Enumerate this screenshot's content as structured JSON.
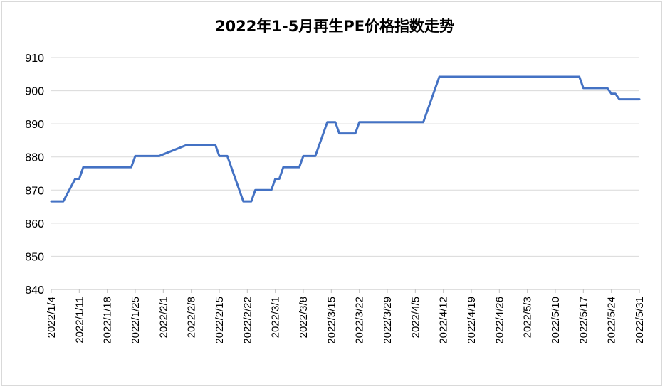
{
  "chart_data": {
    "type": "line",
    "title": "2022年1-5月再生PE价格指数走势",
    "xlabel": "",
    "ylabel": "",
    "ylim": [
      840,
      910
    ],
    "y_ticks": [
      840,
      850,
      860,
      870,
      880,
      890,
      900,
      910
    ],
    "grid": true,
    "legend": "none",
    "x_range": [
      "2022-01-04",
      "2022-05-31"
    ],
    "x_tick_labels": [
      "2022/1/4",
      "2022/1/11",
      "2022/1/18",
      "2022/1/25",
      "2022/2/1",
      "2022/2/8",
      "2022/2/15",
      "2022/2/22",
      "2022/3/1",
      "2022/3/8",
      "2022/3/15",
      "2022/3/22",
      "2022/3/29",
      "2022/4/5",
      "2022/4/12",
      "2022/4/19",
      "2022/4/26",
      "2022/5/3",
      "2022/5/10",
      "2022/5/17",
      "2022/5/24",
      "2022/5/31"
    ],
    "series": [
      {
        "color": "#4472C4",
        "points": [
          [
            "2022-01-04",
            866.6
          ],
          [
            "2022-01-07",
            866.6
          ],
          [
            "2022-01-10",
            873.4
          ],
          [
            "2022-01-11",
            873.4
          ],
          [
            "2022-01-12",
            876.9
          ],
          [
            "2022-01-24",
            876.9
          ],
          [
            "2022-01-25",
            880.3
          ],
          [
            "2022-01-31",
            880.3
          ],
          [
            "2022-02-07",
            883.7
          ],
          [
            "2022-02-14",
            883.7
          ],
          [
            "2022-02-15",
            880.3
          ],
          [
            "2022-02-17",
            880.3
          ],
          [
            "2022-02-21",
            866.6
          ],
          [
            "2022-02-23",
            866.6
          ],
          [
            "2022-02-24",
            870.0
          ],
          [
            "2022-02-28",
            870.0
          ],
          [
            "2022-03-01",
            873.4
          ],
          [
            "2022-03-02",
            873.4
          ],
          [
            "2022-03-03",
            876.9
          ],
          [
            "2022-03-07",
            876.9
          ],
          [
            "2022-03-08",
            880.3
          ],
          [
            "2022-03-11",
            880.3
          ],
          [
            "2022-03-14",
            890.5
          ],
          [
            "2022-03-16",
            890.5
          ],
          [
            "2022-03-17",
            887.1
          ],
          [
            "2022-03-21",
            887.1
          ],
          [
            "2022-03-22",
            890.5
          ],
          [
            "2022-04-07",
            890.5
          ],
          [
            "2022-04-11",
            904.2
          ],
          [
            "2022-05-16",
            904.2
          ],
          [
            "2022-05-17",
            900.8
          ],
          [
            "2022-05-23",
            900.8
          ],
          [
            "2022-05-24",
            899.1
          ],
          [
            "2022-05-25",
            899.1
          ],
          [
            "2022-05-26",
            897.4
          ],
          [
            "2022-05-31",
            897.4
          ]
        ]
      }
    ]
  }
}
